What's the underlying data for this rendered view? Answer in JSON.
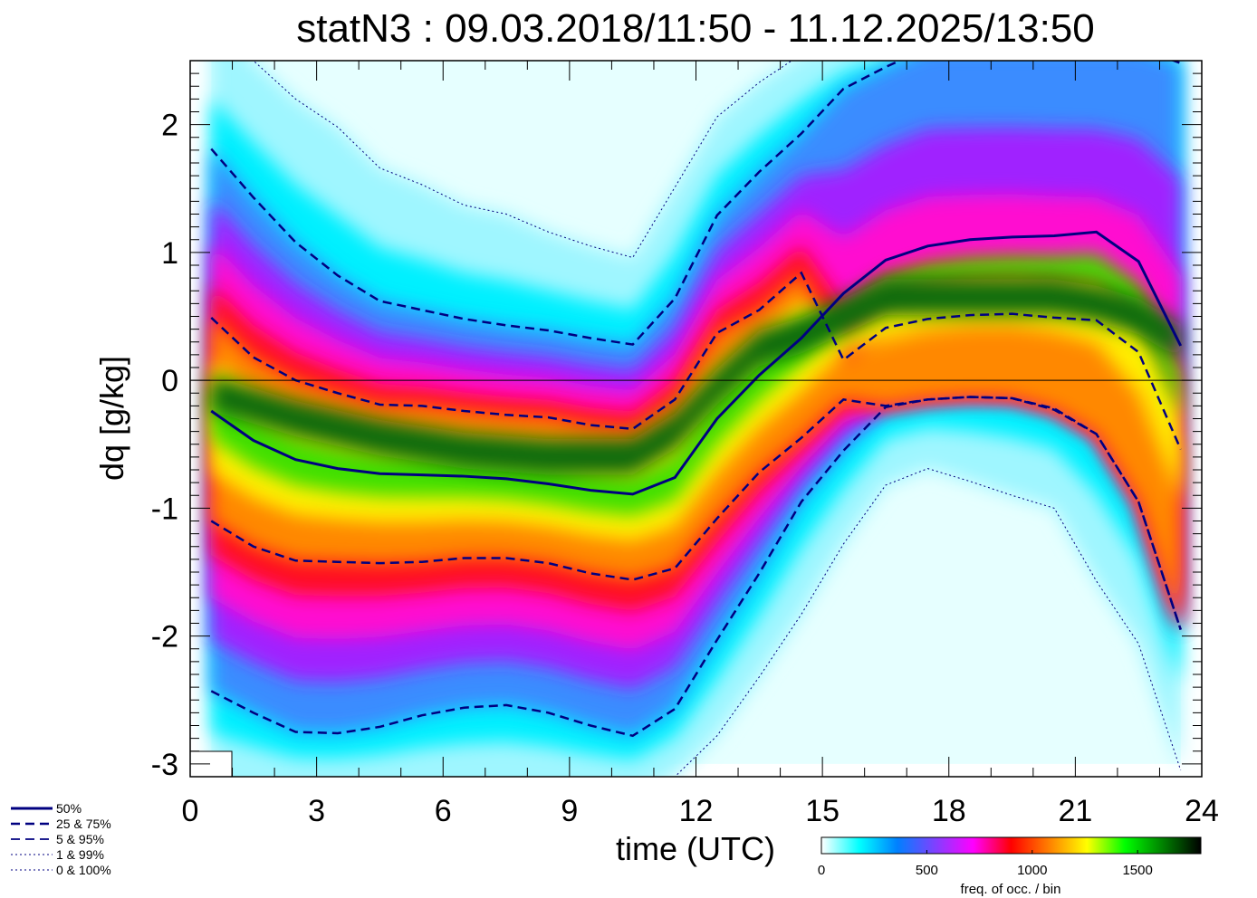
{
  "chart_data": {
    "type": "heatmap",
    "title": "statN3 : 09.03.2018/11:50 - 11.12.2025/13:50",
    "xlabel": "time (UTC)",
    "ylabel": "dq [g/kg]",
    "xlim": [
      0,
      24
    ],
    "ylim": [
      -3.1,
      2.5
    ],
    "x_ticks": [
      "0",
      "3",
      "6",
      "9",
      "12",
      "15",
      "18",
      "21",
      "24"
    ],
    "x_tick_values": [
      0,
      3,
      6,
      9,
      12,
      15,
      18,
      21,
      24
    ],
    "y_ticks": [
      "2",
      "1",
      "0",
      "-1",
      "-2",
      "-3"
    ],
    "y_tick_values": [
      2,
      1,
      0,
      -1,
      -2,
      -3
    ],
    "zero_line": 0,
    "x": [
      0.5,
      1.5,
      2.5,
      3.5,
      4.5,
      5.5,
      6.5,
      7.5,
      8.5,
      9.5,
      10.5,
      11.5,
      12.5,
      13.5,
      14.5,
      15.5,
      16.5,
      17.5,
      18.5,
      19.5,
      20.5,
      21.5,
      22.5,
      23.5
    ],
    "series": [
      {
        "name": "50%",
        "style": "solid",
        "values": [
          -0.24,
          -0.47,
          -0.62,
          -0.69,
          -0.73,
          -0.74,
          -0.75,
          -0.77,
          -0.81,
          -0.86,
          -0.89,
          -0.76,
          -0.3,
          0.04,
          0.33,
          0.68,
          0.94,
          1.05,
          1.1,
          1.12,
          1.13,
          1.16,
          0.93,
          0.27
        ]
      },
      {
        "name": "25%",
        "style": "dashed",
        "values": [
          -1.1,
          -1.3,
          -1.41,
          -1.42,
          -1.43,
          -1.42,
          -1.39,
          -1.39,
          -1.43,
          -1.51,
          -1.56,
          -1.47,
          -1.08,
          -0.72,
          -0.45,
          -0.15,
          -0.2,
          -0.15,
          -0.13,
          -0.14,
          -0.23,
          -0.42,
          -0.95,
          -1.95
        ]
      },
      {
        "name": "75%",
        "style": "dashed",
        "values": [
          0.49,
          0.18,
          0.0,
          -0.1,
          -0.19,
          -0.2,
          -0.24,
          -0.27,
          -0.29,
          -0.35,
          -0.38,
          -0.15,
          0.37,
          0.55,
          0.84,
          0.16,
          0.41,
          0.48,
          0.51,
          0.52,
          0.49,
          0.47,
          0.22,
          -0.54
        ]
      },
      {
        "name": "5%",
        "style": "dashed",
        "values": [
          -2.43,
          -2.6,
          -2.75,
          -2.76,
          -2.71,
          -2.62,
          -2.56,
          -2.54,
          -2.6,
          -2.7,
          -2.78,
          -2.57,
          -2.03,
          -1.51,
          -0.95,
          -0.55,
          -0.21,
          -0.15,
          -0.13,
          -0.14,
          -0.22,
          -0.42,
          -0.95,
          -1.95
        ]
      },
      {
        "name": "95%",
        "style": "dashed",
        "values": [
          1.81,
          1.43,
          1.08,
          0.82,
          0.62,
          0.55,
          0.48,
          0.43,
          0.39,
          0.33,
          0.28,
          0.64,
          1.29,
          1.63,
          1.93,
          2.28,
          2.45,
          2.6,
          2.6,
          2.6,
          2.6,
          2.6,
          2.6,
          2.48
        ]
      },
      {
        "name": "1%",
        "style": "dotted",
        "values": [
          -3.25,
          -3.25,
          -3.25,
          -3.25,
          -3.25,
          -3.25,
          -3.25,
          -3.25,
          -3.25,
          -3.25,
          -3.25,
          -3.1,
          -2.78,
          -2.32,
          -1.83,
          -1.28,
          -0.82,
          -0.69,
          -0.79,
          -0.9,
          -1.0,
          -1.57,
          -2.06,
          -3.05
        ]
      },
      {
        "name": "99%",
        "style": "dotted",
        "values": [
          2.8,
          2.5,
          2.2,
          1.98,
          1.66,
          1.53,
          1.37,
          1.3,
          1.16,
          1.05,
          0.96,
          1.51,
          2.06,
          2.33,
          2.55,
          2.6,
          2.6,
          2.6,
          2.6,
          2.6,
          2.6,
          2.6,
          2.6,
          2.6
        ]
      }
    ],
    "density_ridges": [
      {
        "x": [
          0.5,
          2.5,
          4.5,
          6.5,
          8.5,
          10.5,
          11.5,
          12.5,
          13.5,
          14.5,
          15.5,
          16.5,
          18.5,
          20.5,
          21.5,
          22.5,
          23.5
        ],
        "center": [
          -0.1,
          -0.3,
          -0.45,
          -0.55,
          -0.6,
          -0.6,
          -0.4,
          -0.05,
          0.25,
          0.35,
          0.5,
          0.65,
          0.65,
          0.65,
          0.6,
          0.5,
          0.3
        ]
      }
    ],
    "legend": {
      "placement": "bottom-left",
      "entries": [
        "50%",
        "25 &  75%",
        "5 &  95%",
        "1 &  99%",
        "0 & 100%"
      ]
    },
    "colorbar": {
      "label": "freq. of occ. / bin",
      "ticks": [
        "0",
        "500",
        "1000",
        "1500"
      ],
      "tick_values": [
        0,
        500,
        1000,
        1500
      ],
      "range": [
        0,
        1800
      ],
      "colors": [
        "#ffffff",
        "#00ffff",
        "#0080ff",
        "#8040ff",
        "#ff00ff",
        "#ff0000",
        "#ff8000",
        "#ffff00",
        "#00ff00",
        "#008000",
        "#000000"
      ]
    },
    "line_color": "#000080"
  }
}
